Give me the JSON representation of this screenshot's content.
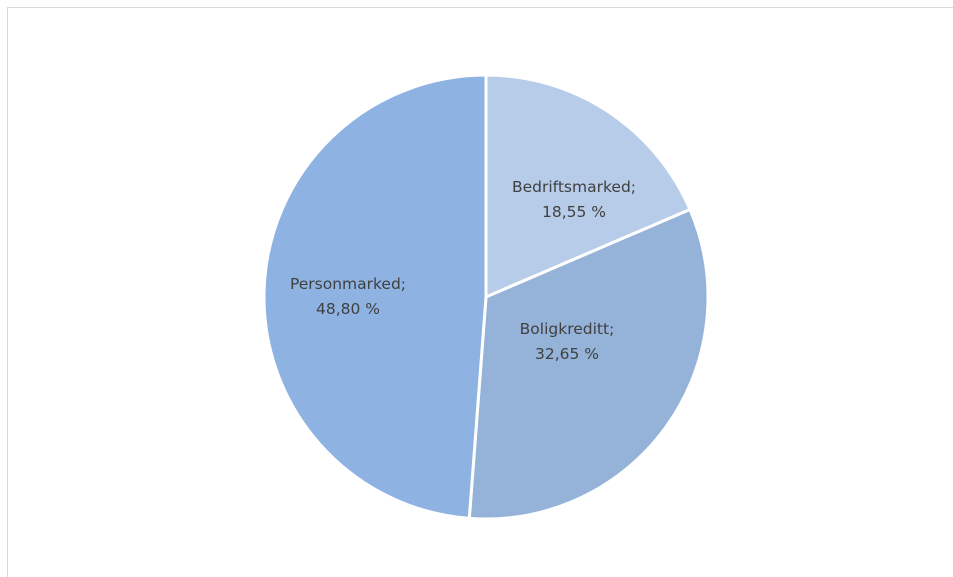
{
  "chart_data": {
    "type": "pie",
    "title": "",
    "slices": [
      {
        "label": "Bedriftsmarked",
        "value": 18.55,
        "text": "18,55 %",
        "color": "#b7cce9"
      },
      {
        "label": "Boligkreditt",
        "value": 32.65,
        "text": "32,65 %",
        "color": "#95b3d9"
      },
      {
        "label": "Personmarked",
        "value": 48.8,
        "text": "48,80 %",
        "color": "#8eb3e3"
      }
    ],
    "start": "12 o'clock",
    "direction": "clockwise",
    "legend": "none",
    "data_labels": "category name and percent, inside slices"
  }
}
